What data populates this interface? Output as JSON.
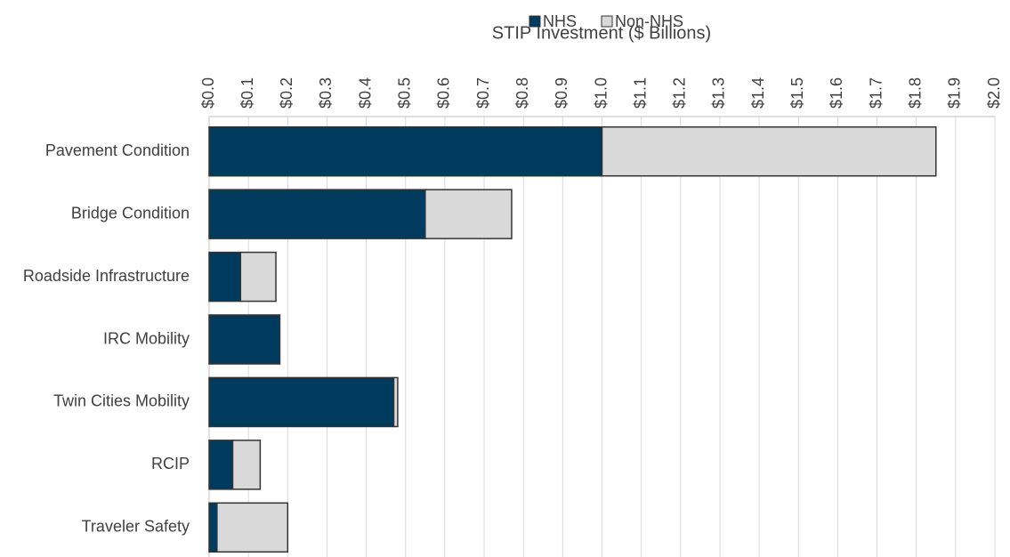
{
  "chart_data": {
    "type": "stacked_bar_horizontal",
    "title": "STIP Investment ($ Billions)",
    "categories": [
      "Pavement Condition",
      "Bridge Condition",
      "Roadside Infrastructure",
      "IRC Mobility",
      "Twin Cities Mobility",
      "RCIP",
      "Traveler Safety"
    ],
    "series": [
      {
        "name": "NHS",
        "color": "#003a5d",
        "values": [
          1.0,
          0.55,
          0.08,
          0.18,
          0.47,
          0.06,
          0.02
        ]
      },
      {
        "name": "Non-NHS",
        "color": "#d9d9d9",
        "values": [
          0.85,
          0.22,
          0.09,
          0,
          0.01,
          0.07,
          0.18
        ]
      }
    ],
    "xlim": [
      0,
      2.0
    ],
    "xticks": [
      {
        "value": 0,
        "label": "$0.0"
      },
      {
        "value": 0.1,
        "label": "$0.1"
      },
      {
        "value": 0.2,
        "label": "$0.2"
      },
      {
        "value": 0.3,
        "label": "$0.3"
      },
      {
        "value": 0.4,
        "label": "$0.4"
      },
      {
        "value": 0.5,
        "label": "$0.5"
      },
      {
        "value": 0.6,
        "label": "$0.6"
      },
      {
        "value": 0.7,
        "label": "$0.7"
      },
      {
        "value": 0.8,
        "label": "$0.8"
      },
      {
        "value": 0.9,
        "label": "$0.9"
      },
      {
        "value": 1.0,
        "label": "$1.0"
      },
      {
        "value": 1.1,
        "label": "$1.1"
      },
      {
        "value": 1.2,
        "label": "$1.2"
      },
      {
        "value": 1.3,
        "label": "$1.3"
      },
      {
        "value": 1.4,
        "label": "$1.4"
      },
      {
        "value": 1.5,
        "label": "$1.5"
      },
      {
        "value": 1.6,
        "label": "$1.6"
      },
      {
        "value": 1.7,
        "label": "$1.7"
      },
      {
        "value": 1.8,
        "label": "$1.8"
      },
      {
        "value": 1.9,
        "label": "$1.9"
      },
      {
        "value": 2.0,
        "label": "$2.0"
      }
    ],
    "grid": true,
    "legend": "top"
  }
}
